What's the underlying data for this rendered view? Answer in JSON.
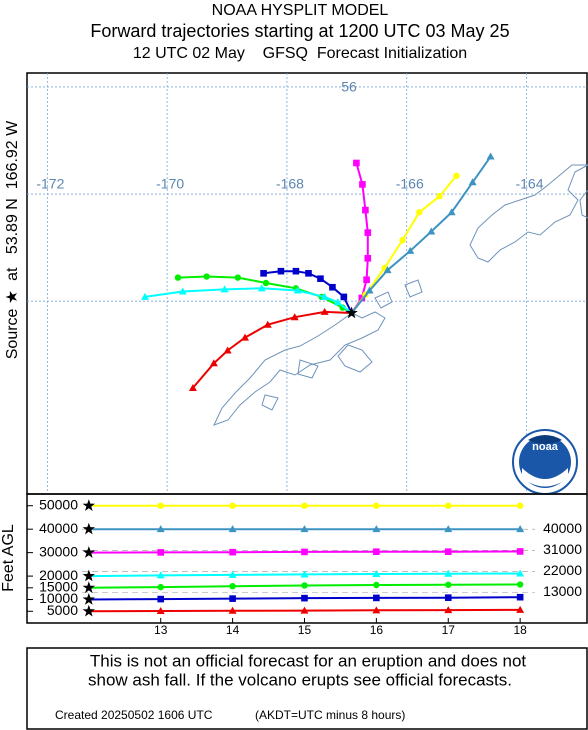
{
  "header": {
    "title": "NOAA HYSPLIT MODEL",
    "subtitle": "Forward trajectories starting at 1200 UTC 03 May 25",
    "line3": "12 UTC 02 May    GFSQ  Forecast Initialization"
  },
  "source_label": "Source ★  at   53.89 N  166.92 W",
  "logo": "noaa",
  "chart_data": [
    {
      "type": "trajectory-map",
      "source": {
        "lon": -166.92,
        "lat": 53.89
      },
      "xlim": [
        -172.34,
        -162.99
      ],
      "ylim": [
        52.2,
        56.13
      ],
      "xticks": [
        -172,
        -170,
        -168,
        -166,
        -164
      ],
      "yticks": [
        {
          "value": 54,
          "label": null
        },
        {
          "value": 55,
          "label": null
        },
        56
      ],
      "series": [
        {
          "color": "#ff00ff",
          "marker": "square",
          "lon": [
            -166.92,
            -166.75,
            -166.67,
            -166.65,
            -166.65,
            -166.69,
            -166.74,
            -166.84
          ],
          "lat": [
            53.89,
            54.03,
            54.2,
            54.4,
            54.64,
            54.85,
            55.09,
            55.29
          ]
        },
        {
          "color": "#ffff00",
          "marker": "circle",
          "lon": [
            -166.92,
            -166.69,
            -166.37,
            -166.07,
            -165.79,
            -165.45,
            -165.17
          ],
          "lat": [
            53.89,
            54.06,
            54.31,
            54.57,
            54.83,
            54.98,
            55.17
          ]
        },
        {
          "color": "#3d93c2",
          "marker": "triangle",
          "lon": [
            -166.92,
            -166.62,
            -166.32,
            -165.94,
            -165.59,
            -165.25,
            -164.9,
            -164.6
          ],
          "lat": [
            53.89,
            54.1,
            54.29,
            54.47,
            54.65,
            54.83,
            55.11,
            55.35
          ]
        },
        {
          "color": "#0000cc",
          "marker": "square",
          "lon": [
            -166.92,
            -167.05,
            -167.24,
            -167.44,
            -167.64,
            -167.85,
            -168.1,
            -168.39
          ],
          "lat": [
            53.89,
            54.04,
            54.13,
            54.21,
            54.26,
            54.28,
            54.28,
            54.26
          ]
        },
        {
          "color": "#00ee00",
          "marker": "circle",
          "lon": [
            -166.92,
            -167.07,
            -167.42,
            -167.85,
            -168.35,
            -168.82,
            -169.34,
            -169.82
          ],
          "lat": [
            53.89,
            53.94,
            54.04,
            54.12,
            54.17,
            54.22,
            54.23,
            54.22
          ]
        },
        {
          "color": "#00ffff",
          "marker": "triangle",
          "lon": [
            -166.92,
            -167.15,
            -167.37,
            -167.82,
            -168.42,
            -169.04,
            -169.74,
            -170.37
          ],
          "lat": [
            53.89,
            53.99,
            54.04,
            54.1,
            54.12,
            54.11,
            54.09,
            54.04
          ]
        },
        {
          "color": "#ee0000",
          "marker": "triangle",
          "lon": [
            -166.92,
            -167.37,
            -167.87,
            -168.32,
            -168.7,
            -168.99,
            -169.22,
            -169.57
          ],
          "lat": [
            53.89,
            53.9,
            53.85,
            53.78,
            53.66,
            53.54,
            53.42,
            53.19
          ]
        }
      ]
    },
    {
      "type": "line",
      "y_label": "Feet AGL",
      "x": [
        12,
        13,
        14,
        15,
        16,
        17,
        18
      ],
      "xlim": [
        11.14,
        18.93
      ],
      "ylim": [
        0,
        55000
      ],
      "xticks": [
        13,
        14,
        15,
        16,
        17,
        18
      ],
      "yticks": [
        5000,
        10000,
        15000,
        20000,
        30000,
        40000,
        50000
      ],
      "right_labels": [
        40000,
        31000,
        22000,
        13000
      ],
      "series": [
        {
          "color": "#ffff00",
          "marker": "circle",
          "values": [
            50000,
            50000,
            50000,
            50000,
            50000,
            50000,
            50000
          ]
        },
        {
          "color": "#3d93c2",
          "marker": "triangle",
          "values": [
            40000,
            40000,
            40000,
            40000,
            40000,
            40000,
            40000
          ]
        },
        {
          "color": "#ff00ff",
          "marker": "square",
          "values": [
            30000,
            30100,
            30200,
            30300,
            30400,
            30400,
            30500
          ]
        },
        {
          "color": "#00ffff",
          "marker": "triangle",
          "values": [
            20000,
            20300,
            20500,
            20700,
            20900,
            21000,
            21100
          ]
        },
        {
          "color": "#00ee00",
          "marker": "circle",
          "values": [
            15000,
            15300,
            15700,
            16000,
            16200,
            16300,
            16400
          ]
        },
        {
          "color": "#0000cc",
          "marker": "square",
          "values": [
            10000,
            10200,
            10400,
            10600,
            10700,
            10800,
            11000
          ]
        },
        {
          "color": "#ee0000",
          "marker": "triangle",
          "values": [
            5000,
            5100,
            5200,
            5300,
            5400,
            5500,
            5600
          ]
        }
      ]
    }
  ],
  "footer": {
    "warning_line1": "This is not an official forecast for an eruption and does not",
    "warning_line2": "show ash fall. If the volcano erupts see official forecasts.",
    "created": "Created 20250502 1606 UTC",
    "timezone": "(AKDT=UTC minus 8 hours)"
  }
}
